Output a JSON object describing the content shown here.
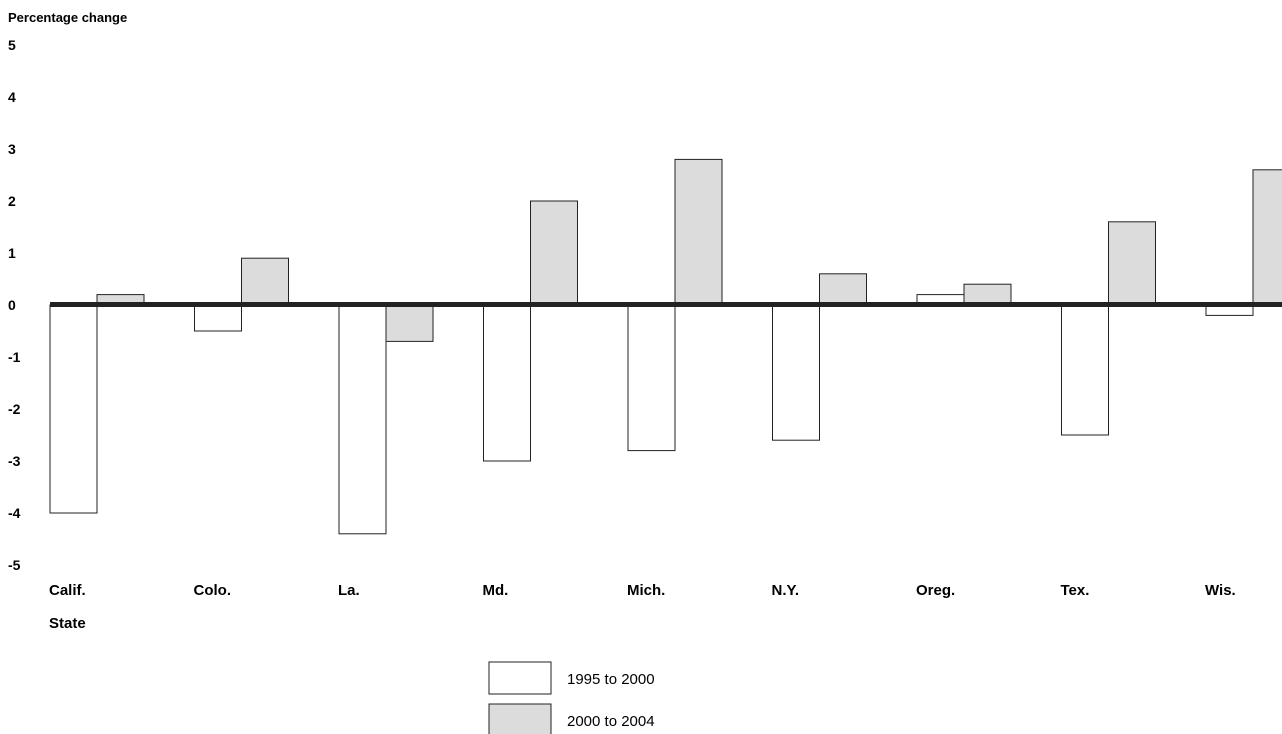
{
  "chart_data": {
    "type": "bar",
    "ylabel": "Percentage change",
    "xlabel": "State",
    "yticks": [
      "5",
      "4",
      "3",
      "2",
      "1",
      "0",
      "-1",
      "-2",
      "-3",
      "-4",
      "-5"
    ],
    "ylim": [
      -5,
      5
    ],
    "grid": false,
    "legend_position": "bottom-center",
    "categories": [
      "Calif.",
      "Colo.",
      "La.",
      "Md.",
      "Mich.",
      "N.Y.",
      "Oreg.",
      "Tex.",
      "Wis."
    ],
    "series": [
      {
        "name": "1995 to 2000",
        "color": "#ffffff",
        "values": [
          -4.0,
          -0.5,
          -4.4,
          -3.0,
          -2.8,
          -2.6,
          0.2,
          -2.5,
          -0.2
        ]
      },
      {
        "name": "2000 to 2004",
        "color": "#dcdcdc",
        "values": [
          0.2,
          0.9,
          -0.7,
          2.0,
          2.8,
          0.6,
          0.4,
          1.6,
          2.6
        ]
      }
    ]
  }
}
